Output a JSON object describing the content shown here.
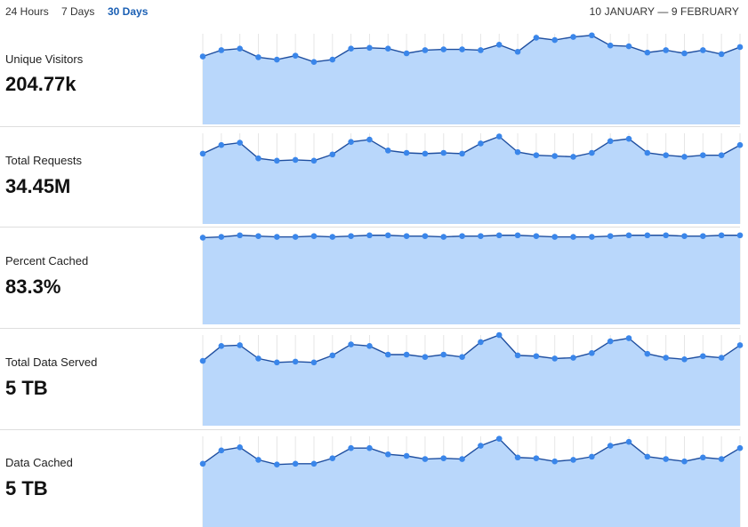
{
  "header": {
    "ranges": [
      "24 Hours",
      "7 Days",
      "30 Days"
    ],
    "active_range": "30 Days",
    "date_range": "10 JANUARY — 9 FEBRUARY"
  },
  "colors": {
    "fill": "#b9d7fb",
    "line": "#1f4fa0",
    "point": "#3a86ea",
    "accent": "#1a5fb4"
  },
  "metrics": [
    {
      "label": "Unique Visitors",
      "value": "204.77k"
    },
    {
      "label": "Total Requests",
      "value": "34.45M"
    },
    {
      "label": "Percent Cached",
      "value": "83.3%"
    },
    {
      "label": "Total Data Served",
      "value": "5 TB"
    },
    {
      "label": "Data Cached",
      "value": "5 TB"
    }
  ],
  "chart_data": [
    {
      "type": "area",
      "title": "Unique Visitors",
      "grid": "vertical",
      "values": [
        0.71,
        0.79,
        0.81,
        0.7,
        0.67,
        0.72,
        0.64,
        0.67,
        0.81,
        0.82,
        0.81,
        0.75,
        0.79,
        0.8,
        0.8,
        0.79,
        0.86,
        0.77,
        0.95,
        0.92,
        0.96,
        0.98,
        0.85,
        0.84,
        0.76,
        0.79,
        0.75,
        0.79,
        0.74,
        0.83
      ]
    },
    {
      "type": "area",
      "title": "Total Requests",
      "grid": "vertical",
      "values": [
        0.74,
        0.85,
        0.88,
        0.68,
        0.65,
        0.66,
        0.65,
        0.73,
        0.89,
        0.92,
        0.78,
        0.75,
        0.74,
        0.75,
        0.74,
        0.87,
        0.96,
        0.76,
        0.72,
        0.71,
        0.7,
        0.75,
        0.9,
        0.93,
        0.75,
        0.72,
        0.7,
        0.72,
        0.72,
        0.85
      ]
    },
    {
      "type": "area",
      "title": "Percent Cached",
      "grid": "vertical",
      "values": [
        0.95,
        0.96,
        0.98,
        0.97,
        0.96,
        0.96,
        0.97,
        0.96,
        0.97,
        0.98,
        0.98,
        0.97,
        0.97,
        0.96,
        0.97,
        0.97,
        0.98,
        0.98,
        0.97,
        0.96,
        0.96,
        0.96,
        0.97,
        0.98,
        0.98,
        0.98,
        0.97,
        0.97,
        0.98,
        0.98
      ]
    },
    {
      "type": "area",
      "title": "Total Data Served",
      "grid": "vertical",
      "values": [
        0.67,
        0.86,
        0.87,
        0.7,
        0.65,
        0.66,
        0.65,
        0.74,
        0.88,
        0.86,
        0.75,
        0.75,
        0.72,
        0.75,
        0.72,
        0.91,
        1.0,
        0.74,
        0.73,
        0.7,
        0.71,
        0.77,
        0.92,
        0.96,
        0.76,
        0.71,
        0.69,
        0.73,
        0.71,
        0.87
      ]
    },
    {
      "type": "area",
      "title": "Data Cached",
      "grid": "vertical",
      "values": [
        0.65,
        0.82,
        0.86,
        0.7,
        0.64,
        0.65,
        0.65,
        0.72,
        0.85,
        0.85,
        0.77,
        0.75,
        0.71,
        0.72,
        0.71,
        0.88,
        0.97,
        0.73,
        0.72,
        0.68,
        0.7,
        0.74,
        0.88,
        0.93,
        0.74,
        0.71,
        0.68,
        0.73,
        0.71,
        0.85
      ]
    }
  ]
}
